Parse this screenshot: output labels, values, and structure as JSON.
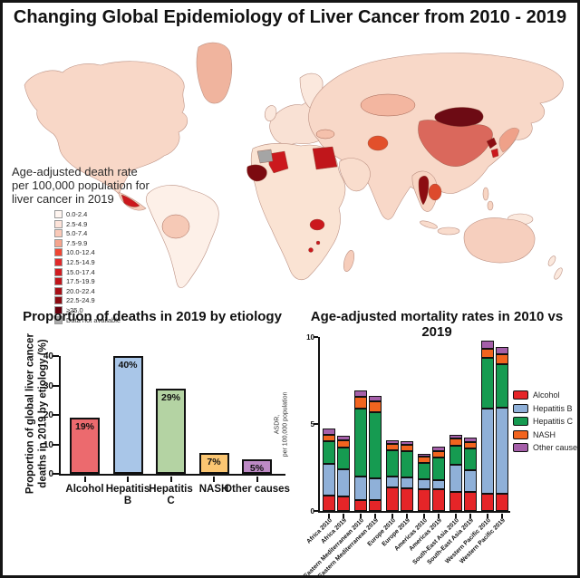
{
  "title": "Changing Global Epidemiology of Liver Cancer from 2010 - 2019",
  "map": {
    "legend_title": "Age-adjusted death rate\nper 100,000 population for\nliver cancer in 2019",
    "legend_items": [
      {
        "label": "0.0-2.4",
        "color": "#fff5f0"
      },
      {
        "label": "2.5-4.9",
        "color": "#fde3d9"
      },
      {
        "label": "5.0-7.4",
        "color": "#fac9b8"
      },
      {
        "label": "7.5-9.9",
        "color": "#f5a48d"
      },
      {
        "label": "10.0-12.4",
        "color": "#ef4633"
      },
      {
        "label": "12.5-14.9",
        "color": "#e0292a"
      },
      {
        "label": "15.0-17.4",
        "color": "#d01c20"
      },
      {
        "label": "17.5-19.9",
        "color": "#c0151b"
      },
      {
        "label": "20.0-22.4",
        "color": "#a80f16"
      },
      {
        "label": "22.5-24.9",
        "color": "#8c0b12"
      },
      {
        "label": "≥25.0",
        "color": "#67000d"
      },
      {
        "label": "Data not available",
        "color": "#ababab"
      }
    ],
    "regions": {
      "north_america": "#f8d7c7",
      "greenland": "#f0b49e",
      "central_america": "#f6cdbb",
      "south_america": "#fdf0e8",
      "andes": "#f6c9b6",
      "europe": "#f9e1d4",
      "scandinavia": "#fbe8dd",
      "uk": "#fbe8dd",
      "africa": "#fae3d3",
      "madagascar": "#f6cdbb",
      "asia": "#f8d8c8",
      "kazakhstan": "#f3b6a0",
      "arabia": "#f9ddcd",
      "turkey": "#f5c1ac",
      "se_asia": "#f8d5c3",
      "indonesia": "#f9dccd",
      "philippines": "#f8d5c3",
      "new_guinea": "#fbe9de",
      "japan": "#efa189",
      "australia": "#f6cfbe",
      "new_zealand": "#fbe9de",
      "mongolia": "#6d0b14",
      "china": "#da685c",
      "north_korea": "#8c0d12",
      "south_korea": "#cb181d",
      "afghanistan": "#e2502b",
      "egypt": "#c0161b",
      "mali": "#cb181d",
      "mauritania": "#a5a5a5",
      "guinea": "#7c0a10",
      "zimbabwe": "#cb181d",
      "lesotho": "#cb181d",
      "thailand": "#8c0d12",
      "indochina": "#dd4a2c",
      "central_america_highlight": "#cb181d"
    }
  },
  "chart_data": [
    {
      "type": "bar",
      "title": "Proportion of deaths in 2019 by etiology",
      "ylabel": "Proportion of global liver cancer\ndeaths in 2019 by etiology (%)",
      "categories": [
        "Alcohol",
        "Hepatitis\nB",
        "Hepatitis\nC",
        "NASH",
        "Other causes"
      ],
      "values": [
        19,
        40,
        29,
        7,
        5
      ],
      "bar_labels": [
        "19%",
        "40%",
        "29%",
        "7%",
        "5%"
      ],
      "bar_colors": [
        "#ec6a6e",
        "#a9c6e8",
        "#b4d3a3",
        "#fbc672",
        "#bd8ac5"
      ],
      "ylim": [
        0,
        40
      ],
      "yticks": [
        0,
        10,
        20,
        30,
        40
      ],
      "grid": false
    },
    {
      "type": "stacked-bar",
      "title": "Age-adjusted mortality rates in 2010 vs 2019",
      "ylabel": "ASDR,\nper 100,000 population",
      "categories": [
        "Africa 2010",
        "Africa 2019",
        "Eastern Mediterranean 2010",
        "Eastern Mediterranean 2019",
        "Europe 2010",
        "Europe 2019",
        "Americas 2010",
        "Americas 2019",
        "South-East Asia 2010",
        "South-East Asia 2019",
        "Western Pacific 2010",
        "Western Pacific 2019"
      ],
      "series": [
        {
          "name": "Alcohol",
          "color": "#e52528",
          "values": [
            0.9,
            0.85,
            0.65,
            0.6,
            1.35,
            1.3,
            1.25,
            1.25,
            1.1,
            1.1,
            1.0,
            1.0
          ]
        },
        {
          "name": "Hepatitis B",
          "color": "#8fb0d8",
          "values": [
            1.8,
            1.55,
            1.35,
            1.3,
            0.65,
            0.65,
            0.55,
            0.5,
            1.55,
            1.25,
            4.9,
            4.95
          ]
        },
        {
          "name": "Hepatitis C",
          "color": "#169b51",
          "values": [
            1.3,
            1.25,
            3.9,
            3.8,
            1.5,
            1.5,
            0.95,
            1.3,
            1.1,
            1.25,
            2.9,
            2.5
          ]
        },
        {
          "name": "NASH",
          "color": "#f2641f",
          "values": [
            0.4,
            0.4,
            0.65,
            0.6,
            0.35,
            0.35,
            0.35,
            0.4,
            0.4,
            0.35,
            0.5,
            0.55
          ]
        },
        {
          "name": "Other causes",
          "color": "#a55fa9",
          "values": [
            0.35,
            0.3,
            0.4,
            0.3,
            0.2,
            0.2,
            0.2,
            0.25,
            0.25,
            0.25,
            0.5,
            0.45
          ]
        }
      ],
      "ylim": [
        0,
        10
      ],
      "yticks": [
        0,
        5,
        10
      ],
      "legend_position": "right",
      "grid": false
    }
  ]
}
